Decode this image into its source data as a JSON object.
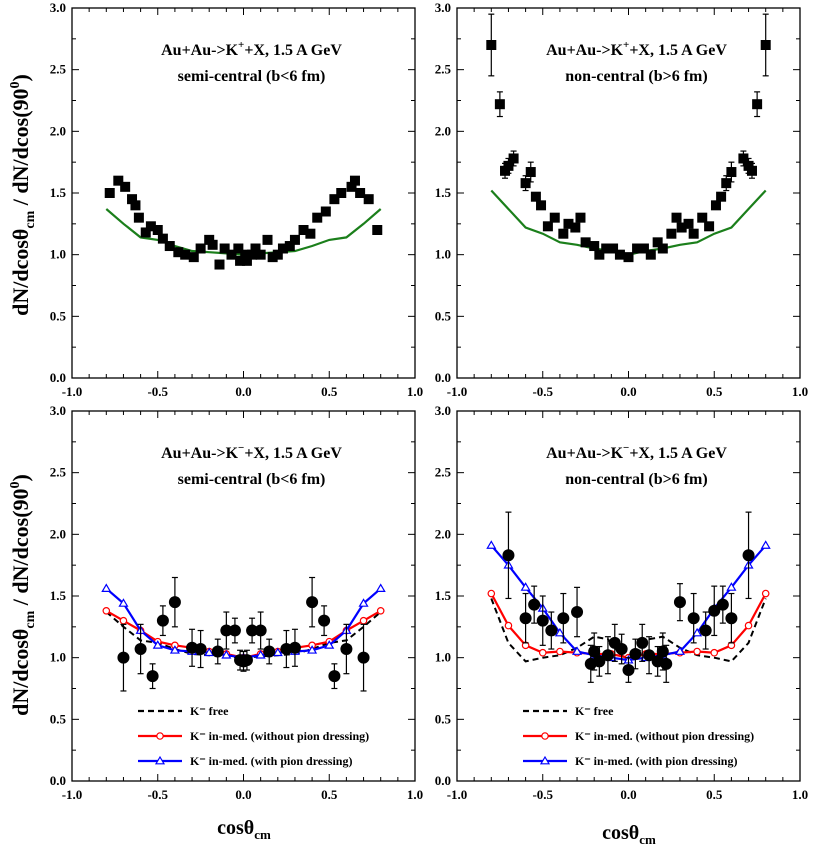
{
  "figure": {
    "ylabel_main": "dN/dcosθ",
    "ylabel_sub": "cm",
    "ylabel_rest": " / dN/dcos(90",
    "ylabel_sup": "0",
    "ylabel_close": ")",
    "xlabel_main": "cosθ",
    "xlabel_sub": "cm"
  },
  "chart_data": [
    {
      "type": "scatter",
      "panel": "top-left",
      "title_line1": "Au+Au->K",
      "title_sup": "+",
      "title_line1_rest": "+X, 1.5 A GeV",
      "title_line2": "semi-central (b<6 fm)",
      "xlim": [
        -1.0,
        1.0
      ],
      "ylim": [
        0.0,
        3.0
      ],
      "xticks": [
        "-1.0",
        "-0.5",
        "0.0",
        "0.5",
        "1.0"
      ],
      "yticks": [
        "0.0",
        "0.5",
        "1.0",
        "1.5",
        "2.0",
        "2.5",
        "3.0"
      ],
      "points": {
        "marker": "filled-square",
        "x": [
          -0.78,
          -0.73,
          -0.69,
          -0.65,
          -0.63,
          -0.61,
          -0.57,
          -0.54,
          -0.5,
          -0.47,
          -0.43,
          -0.38,
          -0.34,
          -0.29,
          -0.25,
          -0.2,
          -0.18,
          -0.14,
          -0.11,
          -0.07,
          -0.03,
          0.01,
          -0.02,
          0.02,
          0.05,
          0.07,
          0.1,
          0.14,
          0.17,
          0.2,
          0.23,
          0.27,
          0.3,
          0.35,
          0.39,
          0.43,
          0.48,
          0.53,
          0.57,
          0.63,
          0.65,
          0.68,
          0.73,
          0.78
        ],
        "y": [
          1.5,
          1.6,
          1.55,
          1.45,
          1.4,
          1.3,
          1.18,
          1.23,
          1.2,
          1.13,
          1.07,
          1.02,
          1.0,
          0.98,
          1.05,
          1.12,
          1.08,
          0.92,
          1.05,
          1.0,
          1.05,
          1.0,
          0.95,
          0.95,
          1.0,
          1.05,
          1.0,
          1.12,
          0.98,
          1.0,
          1.05,
          1.07,
          1.12,
          1.2,
          1.17,
          1.3,
          1.35,
          1.45,
          1.5,
          1.55,
          1.6,
          1.5,
          1.45,
          1.2
        ],
        "yerr": [
          0.04,
          0.04,
          0.04,
          0.04,
          0.04,
          0.04,
          0.04,
          0.04,
          0.04,
          0.04,
          0.04,
          0.04,
          0.04,
          0.04,
          0.04,
          0.04,
          0.04,
          0.04,
          0.04,
          0.04,
          0.04,
          0.04,
          0.04,
          0.04,
          0.04,
          0.04,
          0.04,
          0.04,
          0.04,
          0.04,
          0.04,
          0.04,
          0.04,
          0.04,
          0.04,
          0.04,
          0.04,
          0.04,
          0.04,
          0.04,
          0.04,
          0.04,
          0.04,
          0.04
        ]
      },
      "lines": [
        {
          "name": "model",
          "color": "#1b7f1b",
          "style": "solid",
          "marker": "none",
          "x": [
            -0.8,
            -0.7,
            -0.6,
            -0.5,
            -0.4,
            -0.3,
            -0.2,
            -0.1,
            0.0,
            0.1,
            0.2,
            0.3,
            0.4,
            0.5,
            0.6,
            0.7,
            0.8
          ],
          "y": [
            1.37,
            1.25,
            1.14,
            1.12,
            1.07,
            1.03,
            1.02,
            1.01,
            1.0,
            1.01,
            1.02,
            1.03,
            1.07,
            1.12,
            1.14,
            1.25,
            1.37
          ]
        }
      ],
      "legend": []
    },
    {
      "type": "scatter",
      "panel": "top-right",
      "title_line1": "Au+Au->K",
      "title_sup": "+",
      "title_line1_rest": "+X, 1.5 A GeV",
      "title_line2": "non-central (b>6 fm)",
      "xlim": [
        -1.0,
        1.0
      ],
      "ylim": [
        0.0,
        3.0
      ],
      "xticks": [
        "-1.0",
        "-0.5",
        "0.0",
        "0.5",
        "1.0"
      ],
      "yticks": [
        "0.0",
        "0.5",
        "1.0",
        "1.5",
        "2.0",
        "2.5",
        "3.0"
      ],
      "points": {
        "marker": "filled-square",
        "x": [
          -0.8,
          -0.75,
          -0.72,
          -0.7,
          -0.67,
          -0.6,
          -0.57,
          -0.54,
          -0.51,
          -0.47,
          -0.43,
          -0.38,
          -0.35,
          -0.31,
          -0.28,
          -0.25,
          -0.2,
          -0.17,
          -0.13,
          -0.09,
          -0.05,
          0.0,
          0.05,
          0.09,
          0.13,
          0.17,
          0.2,
          0.25,
          0.28,
          0.31,
          0.35,
          0.38,
          0.43,
          0.47,
          0.51,
          0.54,
          0.57,
          0.6,
          0.67,
          0.7,
          0.72,
          0.75,
          0.8
        ],
        "y": [
          2.7,
          2.22,
          1.68,
          1.72,
          1.78,
          1.58,
          1.67,
          1.47,
          1.4,
          1.23,
          1.3,
          1.17,
          1.25,
          1.22,
          1.3,
          1.1,
          1.07,
          1.0,
          1.05,
          1.05,
          1.0,
          0.98,
          1.05,
          1.05,
          1.0,
          1.1,
          1.05,
          1.17,
          1.3,
          1.22,
          1.25,
          1.17,
          1.3,
          1.23,
          1.4,
          1.47,
          1.58,
          1.67,
          1.78,
          1.72,
          1.68,
          2.22,
          2.7
        ],
        "yerr": [
          0.25,
          0.1,
          0.06,
          0.06,
          0.06,
          0.06,
          0.08,
          0.05,
          0.05,
          0.05,
          0.05,
          0.05,
          0.05,
          0.05,
          0.05,
          0.05,
          0.05,
          0.05,
          0.05,
          0.05,
          0.05,
          0.05,
          0.05,
          0.05,
          0.05,
          0.05,
          0.05,
          0.05,
          0.05,
          0.05,
          0.05,
          0.05,
          0.05,
          0.05,
          0.05,
          0.05,
          0.06,
          0.08,
          0.06,
          0.06,
          0.06,
          0.1,
          0.25
        ]
      },
      "lines": [
        {
          "name": "model",
          "color": "#1b7f1b",
          "style": "solid",
          "marker": "none",
          "x": [
            -0.8,
            -0.7,
            -0.6,
            -0.5,
            -0.4,
            -0.3,
            -0.2,
            -0.1,
            0.0,
            0.1,
            0.2,
            0.3,
            0.4,
            0.5,
            0.6,
            0.7,
            0.8
          ],
          "y": [
            1.52,
            1.37,
            1.22,
            1.17,
            1.1,
            1.08,
            1.05,
            1.03,
            1.0,
            1.03,
            1.05,
            1.08,
            1.1,
            1.17,
            1.22,
            1.37,
            1.52
          ]
        }
      ],
      "legend": []
    },
    {
      "type": "scatter",
      "panel": "bottom-left",
      "title_line1": "Au+Au->K",
      "title_sup": "−",
      "title_line1_rest": "+X, 1.5 A GeV",
      "title_line2": "semi-central (b<6 fm)",
      "xlim": [
        -1.0,
        1.0
      ],
      "ylim": [
        0.0,
        3.0
      ],
      "xticks": [
        "-1.0",
        "-0.5",
        "0.0",
        "0.5",
        "1.0"
      ],
      "yticks": [
        "0.0",
        "0.5",
        "1.0",
        "1.5",
        "2.0",
        "2.5",
        "3.0"
      ],
      "points": {
        "marker": "filled-circle",
        "x": [
          -0.7,
          -0.6,
          -0.53,
          -0.47,
          -0.4,
          -0.3,
          -0.25,
          -0.15,
          -0.1,
          -0.05,
          -0.02,
          0.0,
          0.02,
          0.05,
          0.1,
          0.15,
          0.25,
          0.3,
          0.4,
          0.47,
          0.53,
          0.6,
          0.7
        ],
        "y": [
          1.0,
          1.07,
          0.85,
          1.3,
          1.45,
          1.08,
          1.07,
          1.05,
          1.22,
          1.22,
          0.98,
          0.97,
          0.98,
          1.22,
          1.22,
          1.05,
          1.07,
          1.08,
          1.45,
          1.3,
          0.85,
          1.07,
          1.0
        ],
        "yerr": [
          0.27,
          0.2,
          0.1,
          0.12,
          0.2,
          0.15,
          0.15,
          0.1,
          0.15,
          0.1,
          0.08,
          0.08,
          0.08,
          0.1,
          0.15,
          0.1,
          0.15,
          0.15,
          0.2,
          0.12,
          0.1,
          0.2,
          0.27
        ]
      },
      "lines": [
        {
          "name": "K⁻ free",
          "color": "#000000",
          "style": "dashed",
          "marker": "none",
          "x": [
            -0.8,
            -0.7,
            -0.6,
            -0.5,
            -0.4,
            -0.3,
            -0.2,
            -0.1,
            0.0,
            0.1,
            0.2,
            0.3,
            0.4,
            0.5,
            0.6,
            0.7,
            0.8
          ],
          "y": [
            1.37,
            1.25,
            1.14,
            1.12,
            1.07,
            1.03,
            1.02,
            1.01,
            1.0,
            1.01,
            1.02,
            1.03,
            1.07,
            1.12,
            1.14,
            1.25,
            1.37
          ]
        },
        {
          "name": "K⁻ in-med. (without pion dressing)",
          "color": "#ff0000",
          "style": "solid",
          "marker": "open-circle",
          "x": [
            -0.8,
            -0.7,
            -0.6,
            -0.5,
            -0.4,
            -0.3,
            -0.2,
            -0.1,
            0.0,
            0.1,
            0.2,
            0.3,
            0.4,
            0.5,
            0.6,
            0.7,
            0.8
          ],
          "y": [
            1.38,
            1.3,
            1.22,
            1.13,
            1.1,
            1.08,
            1.05,
            1.03,
            1.0,
            1.03,
            1.05,
            1.08,
            1.1,
            1.13,
            1.22,
            1.3,
            1.38
          ]
        },
        {
          "name": "K⁻ in-med. (with pion dressing)",
          "color": "#0000ff",
          "style": "solid",
          "marker": "open-triangle",
          "x": [
            -0.8,
            -0.7,
            -0.6,
            -0.5,
            -0.4,
            -0.3,
            -0.2,
            -0.1,
            0.0,
            0.1,
            0.2,
            0.3,
            0.4,
            0.5,
            0.6,
            0.7,
            0.8
          ],
          "y": [
            1.56,
            1.44,
            1.22,
            1.1,
            1.06,
            1.05,
            1.04,
            1.02,
            1.0,
            1.02,
            1.04,
            1.05,
            1.06,
            1.1,
            1.22,
            1.44,
            1.56
          ]
        }
      ],
      "legend": [
        "K⁻ free",
        "K⁻ in-med. (without pion dressing)",
        "K⁻ in-med. (with pion dressing)"
      ]
    },
    {
      "type": "scatter",
      "panel": "bottom-right",
      "title_line1": "Au+Au->K",
      "title_sup": "−",
      "title_line1_rest": "+X, 1.5 A GeV",
      "title_line2": "non-central (b>6 fm)",
      "xlim": [
        -1.0,
        1.0
      ],
      "ylim": [
        0.0,
        3.0
      ],
      "xticks": [
        "-1.0",
        "-0.5",
        "0.0",
        "0.5",
        "1.0"
      ],
      "yticks": [
        "0.0",
        "0.5",
        "1.0",
        "1.5",
        "2.0",
        "2.5",
        "3.0"
      ],
      "points": {
        "marker": "filled-circle",
        "x": [
          -0.7,
          -0.6,
          -0.55,
          -0.5,
          -0.45,
          -0.38,
          -0.3,
          -0.22,
          -0.2,
          -0.17,
          -0.12,
          -0.08,
          -0.04,
          0.0,
          0.04,
          0.08,
          0.12,
          0.17,
          0.2,
          0.22,
          0.3,
          0.38,
          0.45,
          0.5,
          0.55,
          0.6,
          0.7
        ],
        "y": [
          1.83,
          1.32,
          1.43,
          1.3,
          1.22,
          1.32,
          1.37,
          0.95,
          1.05,
          0.97,
          1.02,
          1.12,
          1.07,
          0.9,
          1.03,
          1.12,
          1.02,
          0.97,
          1.05,
          0.95,
          1.45,
          1.32,
          1.22,
          1.38,
          1.43,
          1.32,
          1.83
        ],
        "yerr": [
          0.35,
          0.2,
          0.15,
          0.2,
          0.15,
          0.2,
          0.2,
          0.15,
          0.15,
          0.12,
          0.15,
          0.15,
          0.12,
          0.1,
          0.12,
          0.15,
          0.15,
          0.12,
          0.15,
          0.15,
          0.15,
          0.2,
          0.15,
          0.2,
          0.15,
          0.2,
          0.35
        ]
      },
      "lines": [
        {
          "name": "K⁻ free",
          "color": "#000000",
          "style": "dashed",
          "marker": "none",
          "x": [
            -0.8,
            -0.7,
            -0.6,
            -0.5,
            -0.4,
            -0.3,
            -0.2,
            -0.12,
            -0.05,
            0.0,
            0.05,
            0.12,
            0.2,
            0.3,
            0.4,
            0.5,
            0.6,
            0.7,
            0.8
          ],
          "y": [
            1.48,
            1.12,
            0.97,
            1.0,
            1.02,
            1.08,
            1.17,
            1.15,
            1.03,
            0.98,
            1.03,
            1.15,
            1.17,
            1.08,
            1.02,
            1.0,
            0.97,
            1.12,
            1.48
          ]
        },
        {
          "name": "K⁻ in-med. (without pion dressing)",
          "color": "#ff0000",
          "style": "solid",
          "marker": "open-circle",
          "x": [
            -0.8,
            -0.7,
            -0.6,
            -0.5,
            -0.4,
            -0.3,
            -0.2,
            -0.1,
            0.0,
            0.1,
            0.2,
            0.3,
            0.4,
            0.5,
            0.6,
            0.7,
            0.8
          ],
          "y": [
            1.52,
            1.26,
            1.1,
            1.04,
            1.05,
            1.04,
            1.03,
            1.03,
            1.0,
            1.03,
            1.03,
            1.04,
            1.05,
            1.04,
            1.1,
            1.26,
            1.52
          ]
        },
        {
          "name": "K⁻ in-med. (with pion dressing)",
          "color": "#0000ff",
          "style": "solid",
          "marker": "open-triangle",
          "x": [
            -0.8,
            -0.7,
            -0.6,
            -0.5,
            -0.4,
            -0.3,
            -0.2,
            -0.1,
            0.0,
            0.1,
            0.2,
            0.3,
            0.4,
            0.5,
            0.6,
            0.7,
            0.8
          ],
          "y": [
            1.91,
            1.75,
            1.57,
            1.4,
            1.2,
            1.05,
            1.02,
            1.0,
            0.98,
            1.0,
            1.02,
            1.05,
            1.2,
            1.4,
            1.57,
            1.75,
            1.91
          ]
        }
      ],
      "legend": [
        "K⁻ free",
        "K⁻ in-med. (without pion dressing)",
        "K⁻ in-med. (with pion dressing)"
      ]
    }
  ]
}
